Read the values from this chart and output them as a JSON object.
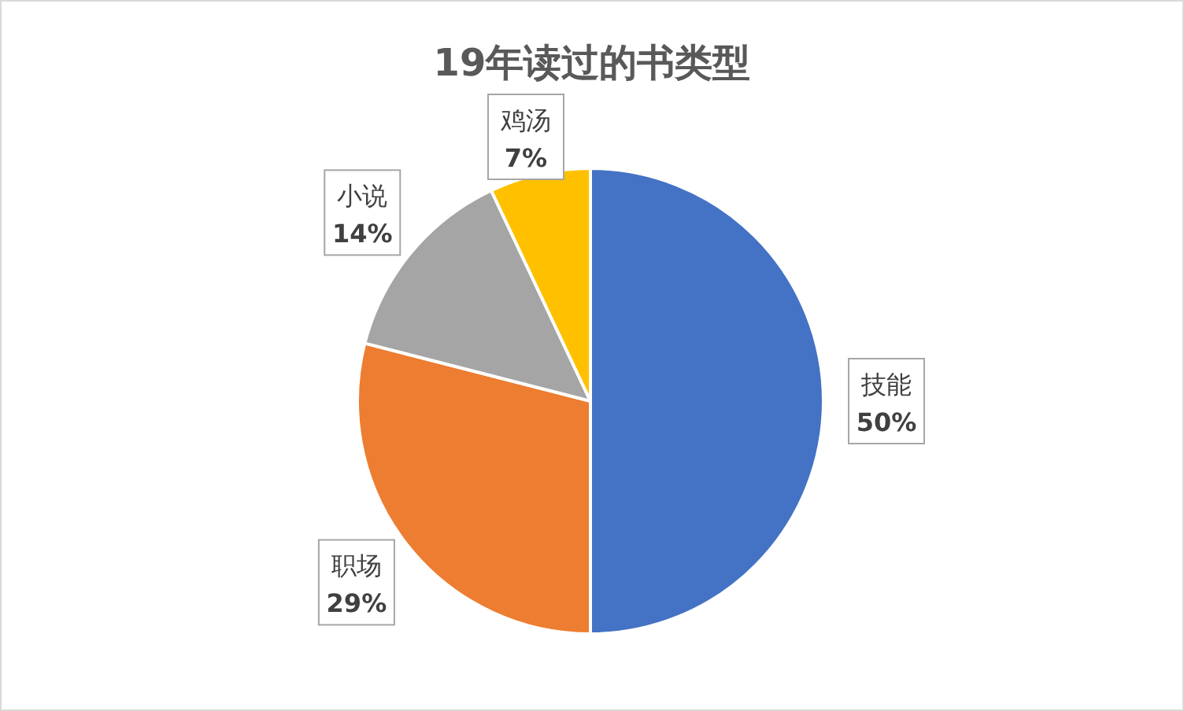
{
  "chart_data": {
    "type": "pie",
    "title": "19年读过的书类型",
    "categories": [
      "技能",
      "职场",
      "小说",
      "鸡汤"
    ],
    "values": [
      50,
      29,
      14,
      7
    ],
    "colors": [
      "#4472c4",
      "#ed7d31",
      "#a5a5a5",
      "#ffc000"
    ],
    "value_labels": [
      "50%",
      "29%",
      "14%",
      "7%"
    ],
    "legend": false
  }
}
